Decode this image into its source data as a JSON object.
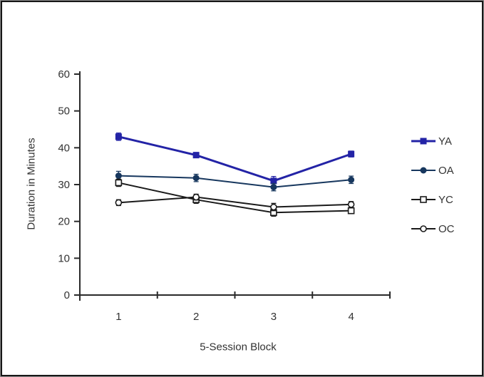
{
  "chart_data": {
    "type": "line",
    "title": "",
    "xlabel": "5-Session Block",
    "ylabel": "Duration in Minutes",
    "categories": [
      "1",
      "2",
      "3",
      "4"
    ],
    "y_ticks": [
      0,
      10,
      20,
      30,
      40,
      50,
      60
    ],
    "ylim": [
      0,
      60
    ],
    "grid": false,
    "legend_position": "right",
    "series": [
      {
        "name": "YA",
        "marker": "filled-square",
        "color": "#2323a6",
        "line_width": 3,
        "values": [
          43,
          38,
          31,
          38.3
        ],
        "errors": [
          1,
          0.7,
          1.2,
          0.8
        ]
      },
      {
        "name": "OA",
        "marker": "filled-circle",
        "color": "#17375e",
        "line_width": 2,
        "values": [
          32.4,
          31.8,
          29.3,
          31.3
        ],
        "errors": [
          1.2,
          1,
          1,
          1
        ]
      },
      {
        "name": "YC",
        "marker": "open-square",
        "color": "#1a1a1a",
        "line_width": 2,
        "values": [
          30.5,
          25.9,
          22.4,
          22.9
        ],
        "errors": [
          1,
          1,
          1,
          0.8
        ]
      },
      {
        "name": "OC",
        "marker": "open-circle",
        "color": "#1a1a1a",
        "line_width": 2,
        "values": [
          25.1,
          26.6,
          23.9,
          24.6
        ],
        "errors": [
          0.8,
          0.8,
          1,
          0.8
        ]
      }
    ]
  },
  "colors": {
    "axis": "#2a2a2a",
    "text": "#333333",
    "frame": "#161616",
    "background": "#ffffff"
  }
}
